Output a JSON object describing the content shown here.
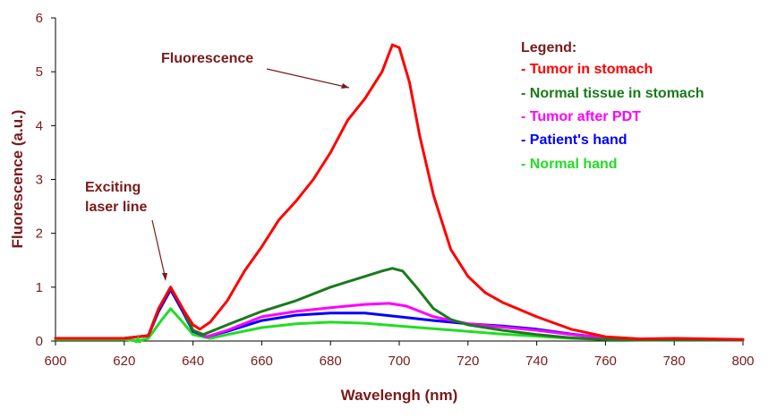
{
  "chart_data": {
    "type": "line",
    "title": "",
    "xlabel": "Wavelengh (nm)",
    "ylabel": "Fluorescence (a.u.)",
    "xlim": [
      600,
      800
    ],
    "ylim": [
      0,
      6
    ],
    "grid": false,
    "xticks": [
      "600",
      "620",
      "640",
      "660",
      "680",
      "700",
      "720",
      "740",
      "760",
      "780",
      "800"
    ],
    "yticks": [
      "0",
      "1",
      "2",
      "3",
      "4",
      "5",
      "6"
    ],
    "legend": {
      "title": "Legend:",
      "placement": "top-right",
      "entries": [
        {
          "label": "- Tumor in stomach",
          "color": "#ff0000"
        },
        {
          "label": "- Normal tissue in stomach",
          "color": "#1a7a1a"
        },
        {
          "label": "- Tumor after PDT",
          "color": "#ff00ff"
        },
        {
          "label": "- Patient's hand",
          "color": "#0000ff"
        },
        {
          "label": "- Normal hand",
          "color": "#22dd22"
        }
      ]
    },
    "annotations": [
      {
        "text": "Fluorescence",
        "arrow_to": [
          693,
          4.8
        ]
      },
      {
        "text": "Exciting",
        "arrow_to": [
          633.5,
          1.05
        ]
      },
      {
        "text": "laser line",
        "arrow_to": [
          633.5,
          1.05
        ]
      }
    ],
    "series": [
      {
        "name": "Tumor in stomach",
        "color": "#ff0000",
        "x": [
          600,
          620,
          627,
          630,
          633.5,
          637,
          640,
          642,
          645,
          650,
          655,
          660,
          665,
          670,
          675,
          680,
          685,
          690,
          695,
          698,
          700,
          703,
          706,
          710,
          715,
          720,
          725,
          730,
          740,
          750,
          760,
          770,
          780,
          800
        ],
        "y": [
          0.05,
          0.05,
          0.1,
          0.6,
          1.0,
          0.6,
          0.3,
          0.22,
          0.35,
          0.75,
          1.3,
          1.75,
          2.25,
          2.6,
          3.0,
          3.5,
          4.1,
          4.5,
          5.0,
          5.5,
          5.45,
          4.8,
          3.8,
          2.7,
          1.7,
          1.2,
          0.9,
          0.72,
          0.45,
          0.22,
          0.08,
          0.04,
          0.05,
          0.03
        ]
      },
      {
        "name": "Normal tissue in stomach",
        "color": "#1a7a1a",
        "x": [
          600,
          620,
          627,
          630,
          633.5,
          637,
          640,
          643,
          650,
          660,
          670,
          680,
          690,
          695,
          698,
          701,
          705,
          710,
          715,
          720,
          730,
          740,
          750,
          760,
          780,
          800
        ],
        "y": [
          0.05,
          0.05,
          0.1,
          0.6,
          1.0,
          0.6,
          0.2,
          0.12,
          0.3,
          0.55,
          0.75,
          1.0,
          1.2,
          1.3,
          1.35,
          1.3,
          1.0,
          0.6,
          0.4,
          0.3,
          0.2,
          0.12,
          0.06,
          0.03,
          0.02,
          0.02
        ]
      },
      {
        "name": "Tumor after PDT",
        "color": "#ff00ff",
        "x": [
          600,
          620,
          627,
          630,
          633.5,
          637,
          640,
          644,
          650,
          660,
          670,
          680,
          690,
          697,
          702,
          710,
          720,
          730,
          740,
          750,
          760,
          770,
          780,
          800
        ],
        "y": [
          0.05,
          0.05,
          0.1,
          0.6,
          1.0,
          0.6,
          0.2,
          0.08,
          0.2,
          0.45,
          0.55,
          0.62,
          0.68,
          0.7,
          0.65,
          0.45,
          0.32,
          0.26,
          0.2,
          0.12,
          0.06,
          0.03,
          0.03,
          0.02
        ]
      },
      {
        "name": "Patient's hand",
        "color": "#0000ff",
        "x": [
          600,
          620,
          627,
          630,
          633.5,
          637,
          640,
          644,
          650,
          660,
          670,
          680,
          690,
          700,
          710,
          720,
          730,
          740,
          750,
          760,
          770,
          780,
          800
        ],
        "y": [
          0.05,
          0.05,
          0.1,
          0.55,
          0.95,
          0.55,
          0.18,
          0.08,
          0.18,
          0.38,
          0.48,
          0.52,
          0.52,
          0.45,
          0.38,
          0.32,
          0.28,
          0.22,
          0.13,
          0.06,
          0.03,
          0.02,
          0.02
        ]
      },
      {
        "name": "Normal hand",
        "color": "#22dd22",
        "x": [
          600,
          620,
          624,
          627,
          631,
          633.5,
          637,
          640,
          645,
          650,
          660,
          670,
          680,
          690,
          700,
          710,
          720,
          730,
          740,
          750,
          760,
          770,
          780,
          800
        ],
        "y": [
          0.03,
          0.03,
          0.0,
          0.05,
          0.4,
          0.6,
          0.35,
          0.12,
          0.05,
          0.12,
          0.25,
          0.32,
          0.35,
          0.33,
          0.28,
          0.23,
          0.18,
          0.13,
          0.09,
          0.05,
          0.03,
          0.02,
          0.02,
          0.02
        ]
      }
    ]
  }
}
